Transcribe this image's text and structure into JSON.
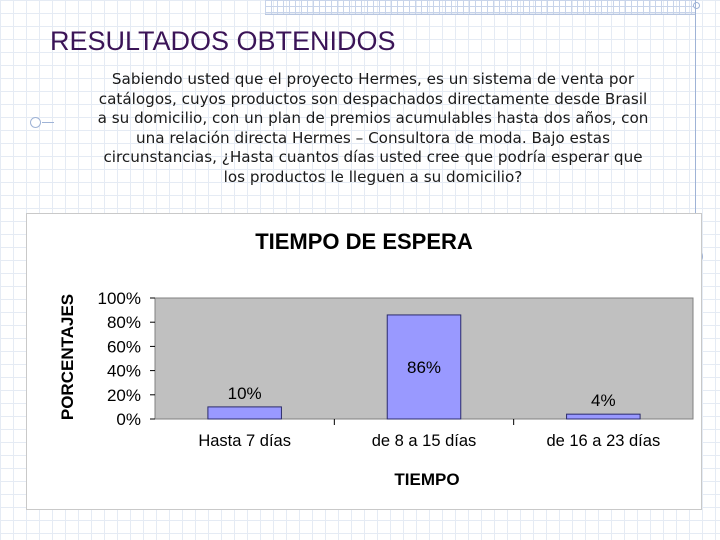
{
  "slide": {
    "title": "RESULTADOS OBTENIDOS",
    "body_lines": [
      "Sabiendo usted que el proyecto Hermes, es un sistema de venta por",
      "catálogos, cuyos productos son despachados directamente desde Brasil",
      "a su domicilio, con un plan de premios acumulables hasta dos años, con",
      "una relación directa Hermes – Consultora de moda.  Bajo estas",
      "circunstancias, ¿Hasta cuantos días usted cree que podría esperar que",
      "los productos le lleguen a su domicilio?"
    ]
  },
  "chart_data": {
    "type": "bar",
    "title": "TIEMPO DE ESPERA",
    "xlabel": "TIEMPO",
    "ylabel": "PORCENTAJES",
    "categories": [
      "Hasta 7 días",
      "de 8 a 15 días",
      "de 16 a 23 días"
    ],
    "values": [
      10,
      86,
      4
    ],
    "data_labels": [
      "10%",
      "86%",
      "4%"
    ],
    "ylim": [
      0,
      100
    ],
    "yticks": [
      0,
      20,
      40,
      60,
      80,
      100
    ],
    "ytick_labels": [
      "0%",
      "20%",
      "40%",
      "60%",
      "80%",
      "100%"
    ],
    "grid": false,
    "legend": "none",
    "colors": {
      "bar_fill": "#9999ff",
      "bar_stroke": "#2b2b6b",
      "plot_bg": "#c0c0c0",
      "title_color": "#3b1457"
    }
  }
}
